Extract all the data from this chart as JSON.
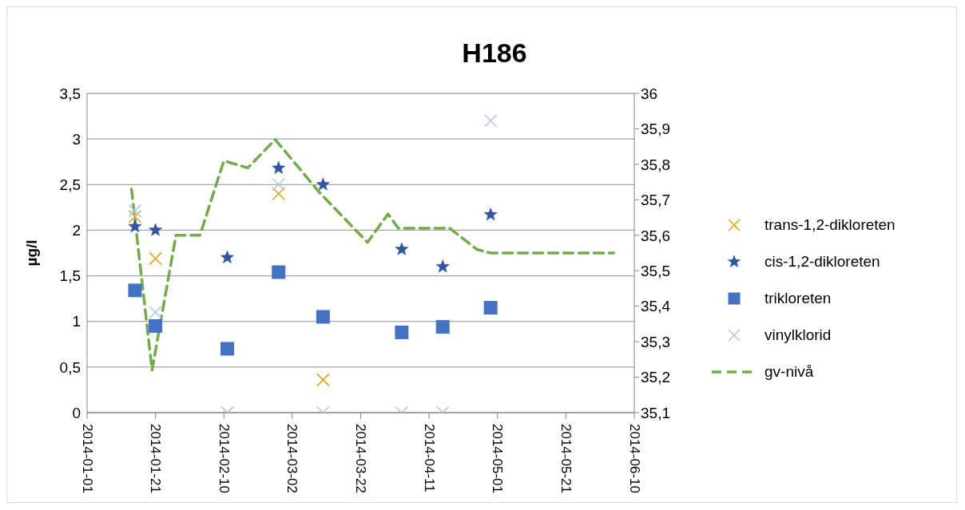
{
  "chart_data": {
    "type": "scatter",
    "title": "H186",
    "ylabel": "µg/l",
    "xlim": [
      "2014-01-01",
      "2014-06-10"
    ],
    "xticks": [
      "2014-01-01",
      "2014-01-21",
      "2014-02-10",
      "2014-03-02",
      "2014-03-22",
      "2014-04-11",
      "2014-05-01",
      "2014-05-21",
      "2014-06-10"
    ],
    "ylim": [
      0,
      3.5
    ],
    "yticks": [
      0,
      {
        "value": 0.5,
        "label": "0,5"
      },
      1,
      {
        "value": 1.5,
        "label": "1,5"
      },
      2,
      {
        "value": 2.5,
        "label": "2,5"
      },
      3,
      {
        "value": 3.5,
        "label": "3,5"
      }
    ],
    "y2lim": [
      35.1,
      36
    ],
    "y2ticks": [
      {
        "value": 35.1,
        "label": "35,1"
      },
      {
        "value": 35.2,
        "label": "35,2"
      },
      {
        "value": 35.3,
        "label": "35,3"
      },
      {
        "value": 35.4,
        "label": "35,4"
      },
      {
        "value": 35.5,
        "label": "35,5"
      },
      {
        "value": 35.6,
        "label": "35,6"
      },
      {
        "value": 35.7,
        "label": "35,7"
      },
      {
        "value": 35.8,
        "label": "35,8"
      },
      {
        "value": 35.9,
        "label": "35,9"
      },
      36
    ],
    "grid": "y",
    "legend": "right",
    "x": [
      "2014-01-15",
      "2014-01-21",
      "2014-02-11",
      "2014-02-26",
      "2014-03-11",
      "2014-04-03",
      "2014-04-15",
      "2014-04-29"
    ],
    "series": [
      {
        "name": "trans-1,2-dikloreten",
        "marker": "cross",
        "color": "#e5a50a",
        "values": [
          2.15,
          1.69,
          0,
          2.4,
          0.36,
          null,
          null,
          null
        ]
      },
      {
        "name": "cis-1,2-dikloreten",
        "marker": "star",
        "color": "#2f55a4",
        "values": [
          2.04,
          2.0,
          1.7,
          2.68,
          2.5,
          1.79,
          1.6,
          2.17
        ]
      },
      {
        "name": "trikloreten",
        "marker": "square",
        "color": "#4472c4",
        "values": [
          1.34,
          0.95,
          0.7,
          1.54,
          1.05,
          0.88,
          0.94,
          1.15
        ]
      },
      {
        "name": "vinylklorid",
        "marker": "cross",
        "color": "#b4c7e7",
        "values": [
          2.21,
          1.1,
          0,
          2.5,
          0,
          0,
          0,
          3.2
        ]
      },
      {
        "name": "gv-nivå",
        "type": "line",
        "axis": "y2",
        "marker": "none",
        "line_style": "dashed",
        "color": "#70ad47",
        "x": [
          "2014-01-14",
          "2014-01-20",
          "2014-01-27",
          "2014-02-03",
          "2014-02-10",
          "2014-02-17",
          "2014-02-25",
          "2014-03-10",
          "2014-03-24",
          "2014-03-30",
          "2014-04-02",
          "2014-04-17",
          "2014-04-25",
          "2014-04-29",
          "2014-06-04"
        ],
        "values": [
          35.73,
          35.22,
          35.6,
          35.6,
          35.81,
          35.79,
          35.87,
          35.72,
          35.58,
          35.66,
          35.62,
          35.62,
          35.56,
          35.55,
          35.55
        ]
      }
    ]
  }
}
